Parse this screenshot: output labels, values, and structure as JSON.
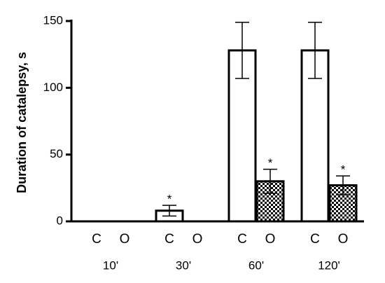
{
  "chart_data": {
    "type": "bar",
    "ylabel": "Duration of catalepsy, s",
    "categories": [
      "10'",
      "30'",
      "60'",
      "120'"
    ],
    "series": [
      {
        "name": "C",
        "color": "#ffffff",
        "values": [
          0,
          8,
          128,
          128
        ],
        "errors": [
          null,
          4,
          21,
          21
        ]
      },
      {
        "name": "O",
        "color": "#000000",
        "pattern": "checker",
        "values": [
          0,
          0,
          30,
          27
        ],
        "errors": [
          null,
          null,
          9,
          7
        ]
      }
    ],
    "annotations": [
      {
        "series": 0,
        "index": 1,
        "text": "*"
      },
      {
        "series": 1,
        "index": 2,
        "text": "*"
      },
      {
        "series": 1,
        "index": 3,
        "text": "*"
      }
    ],
    "ylim": [
      0,
      150
    ],
    "yticks": [
      0,
      50,
      100,
      150
    ]
  }
}
